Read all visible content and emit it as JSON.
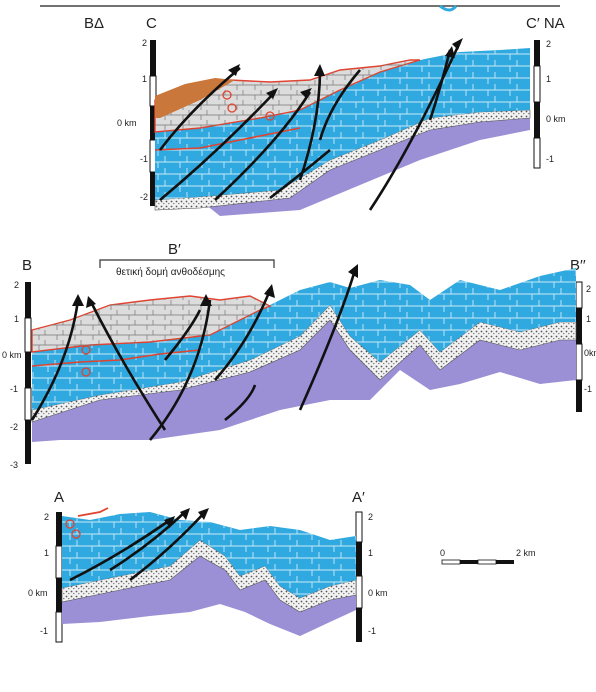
{
  "header_greek": "ΒΔ",
  "sections": {
    "c": {
      "left_label": "C",
      "right_label": "C′ NA",
      "left_ticks": [
        "2",
        "1",
        "0 km",
        "-1",
        "-2"
      ],
      "right_ticks": [
        "2",
        "1",
        "0 km",
        "-1"
      ]
    },
    "b": {
      "left_label": "B",
      "mid_label": "B′",
      "right_label": "B′′",
      "bracket_caption": "θετική δομή ανθοδέσμης",
      "left_ticks": [
        "2",
        "1",
        "0 km",
        "-1",
        "-2",
        "-3"
      ],
      "right_ticks": [
        "2",
        "1",
        "0km",
        "-1"
      ]
    },
    "a": {
      "left_label": "A",
      "right_label": "A′",
      "left_ticks": [
        "2",
        "1",
        "0 km",
        "-1"
      ],
      "right_ticks": [
        "2",
        "1",
        "0 km",
        "-1"
      ]
    }
  },
  "scale_bar": {
    "start": "0",
    "end": "2 km"
  },
  "colors": {
    "limestone_blue": "#2fa9df",
    "basement_purple": "#9b8fd6",
    "flysch_grey": "#dcdcdc",
    "molasse_orange": "#c9773a",
    "contact_red": "#e0432f",
    "fault_black": "#111111"
  }
}
